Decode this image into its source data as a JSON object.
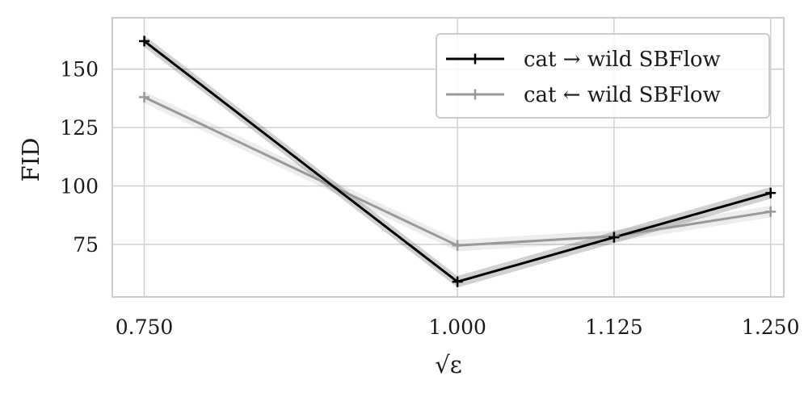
{
  "chart_data": {
    "type": "line",
    "xlabel": "√ε",
    "ylabel": "FID",
    "x": [
      0.75,
      1.0,
      1.125,
      1.25
    ],
    "xticks": [
      "0.750",
      "1.000",
      "1.125",
      "1.250"
    ],
    "yticks": [
      75,
      100,
      125,
      150
    ],
    "xlim": [
      0.7245,
      1.2605
    ],
    "ylim": [
      52.5,
      172.0
    ],
    "grid": true,
    "legend_position": "top-right",
    "series": [
      {
        "name": "cat → wild SBFlow",
        "color": "#000000",
        "values": [
          162,
          59,
          78,
          97
        ],
        "band": 2.5
      },
      {
        "name": "cat ← wild SBFlow",
        "color": "#999999",
        "values": [
          138,
          74.5,
          78.5,
          89
        ],
        "band": 2.5
      }
    ]
  }
}
